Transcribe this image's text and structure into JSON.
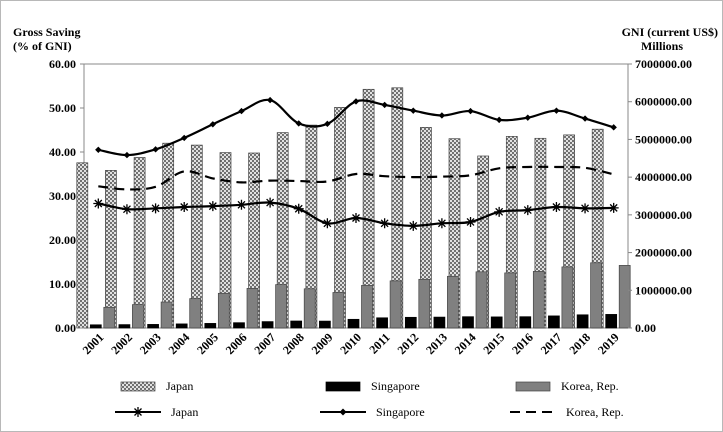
{
  "chart_data": {
    "type": "bar",
    "categories": [
      "2001",
      "2002",
      "2003",
      "2004",
      "2005",
      "2006",
      "2007",
      "2008",
      "2009",
      "2010",
      "2011",
      "2012",
      "2013",
      "2014",
      "2015",
      "2016",
      "2017",
      "2018",
      "2019"
    ],
    "left_axis": {
      "title_line1": "Gross Saving",
      "title_line2": "(% of GNI)",
      "ylim": [
        0,
        60
      ],
      "ticks": [
        "0.00",
        "10.00",
        "20.00",
        "30.00",
        "40.00",
        "50.00",
        "60.00"
      ]
    },
    "right_axis": {
      "title_line1": "GNI (current US$)",
      "title_line2": "Millions",
      "ylim": [
        0,
        7000000
      ],
      "ticks": [
        "0.00",
        "1000000.00",
        "2000000.00",
        "3000000.00",
        "4000000.00",
        "5000000.00",
        "6000000.00",
        "7000000.00"
      ]
    },
    "bar_series": [
      {
        "name": "Japan",
        "axis": "right",
        "pattern": "crosshatch",
        "values": [
          4380000,
          4180000,
          4520000,
          4900000,
          4850000,
          4650000,
          4640000,
          5180000,
          5380000,
          5850000,
          6330000,
          6370000,
          5320000,
          5020000,
          4560000,
          5080000,
          5030000,
          5120000,
          5270000
        ]
      },
      {
        "name": "Singapore",
        "axis": "right",
        "color": "#000000",
        "values": [
          85000,
          90000,
          96000,
          110000,
          123000,
          140000,
          170000,
          185000,
          183000,
          230000,
          270000,
          285000,
          290000,
          300000,
          295000,
          300000,
          320000,
          350000,
          360000
        ]
      },
      {
        "name": "Korea, Rep.",
        "axis": "right",
        "color": "#808080",
        "values": [
          550000,
          620000,
          690000,
          780000,
          920000,
          1050000,
          1150000,
          1040000,
          940000,
          1130000,
          1250000,
          1290000,
          1370000,
          1490000,
          1460000,
          1500000,
          1620000,
          1730000,
          1660000
        ]
      }
    ],
    "line_series": [
      {
        "name": "Japan",
        "axis": "left",
        "style": "solid-star",
        "values": [
          28.3,
          27.0,
          27.2,
          27.5,
          27.7,
          28.0,
          28.5,
          27.1,
          23.8,
          25.0,
          23.8,
          23.2,
          23.8,
          24.1,
          26.4,
          26.8,
          27.5,
          27.2,
          27.3
        ]
      },
      {
        "name": "Singapore",
        "axis": "left",
        "style": "solid-diamond",
        "values": [
          40.5,
          39.3,
          40.6,
          43.2,
          46.3,
          49.3,
          51.8,
          46.5,
          46.4,
          51.5,
          50.7,
          49.4,
          48.3,
          49.3,
          47.3,
          47.8,
          49.4,
          47.6,
          45.6
        ]
      },
      {
        "name": "Korea, Rep.",
        "axis": "left",
        "style": "dashed",
        "values": [
          32.2,
          31.5,
          32.1,
          35.6,
          34.0,
          33.1,
          33.5,
          33.4,
          33.3,
          35.0,
          34.5,
          34.3,
          34.4,
          34.7,
          36.3,
          36.6,
          36.6,
          36.4,
          34.9
        ]
      }
    ],
    "legend_position": "bottom",
    "grid": false
  }
}
